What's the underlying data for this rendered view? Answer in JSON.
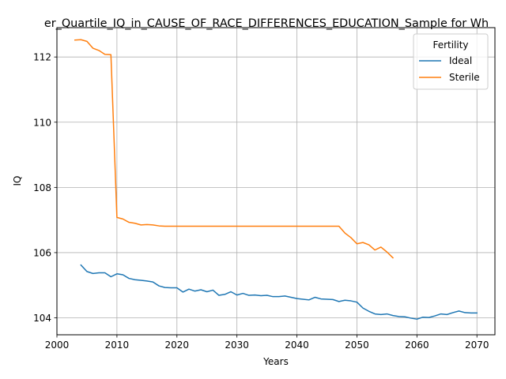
{
  "chart_data": {
    "type": "line",
    "title": "er_Quartile_IQ_in_CAUSE_OF_RACE_DIFFERENCES_EDUCATION_Sample for Wh",
    "xlabel": "Years",
    "ylabel": "IQ",
    "xlim": [
      2000,
      2073
    ],
    "ylim": [
      103.48,
      112.9
    ],
    "xticks": [
      2000,
      2010,
      2020,
      2030,
      2040,
      2050,
      2060,
      2070
    ],
    "xtick_labels": [
      "2000",
      "2010",
      "2020",
      "2030",
      "2040",
      "2050",
      "2060",
      "2070"
    ],
    "yticks": [
      104,
      106,
      108,
      110,
      112
    ],
    "ytick_labels": [
      "104",
      "106",
      "108",
      "110",
      "112"
    ],
    "grid": true,
    "legend": {
      "title": "Fertility",
      "placement": "top-right"
    },
    "series": [
      {
        "name": "Ideal",
        "color": "#1f77b4",
        "x": [
          2004,
          2005,
          2006,
          2007,
          2008,
          2009,
          2010,
          2011,
          2012,
          2013,
          2014,
          2015,
          2016,
          2017,
          2018,
          2019,
          2020,
          2021,
          2022,
          2023,
          2024,
          2025,
          2026,
          2027,
          2028,
          2029,
          2030,
          2031,
          2032,
          2033,
          2034,
          2035,
          2036,
          2037,
          2038,
          2039,
          2040,
          2041,
          2042,
          2043,
          2044,
          2045,
          2046,
          2047,
          2048,
          2049,
          2050,
          2051,
          2052,
          2053,
          2054,
          2055,
          2056,
          2057,
          2058,
          2059,
          2060,
          2061,
          2062,
          2063,
          2064,
          2065,
          2066,
          2067,
          2068,
          2069,
          2070
        ],
        "y": [
          105.62,
          105.42,
          105.36,
          105.38,
          105.38,
          105.26,
          105.35,
          105.32,
          105.21,
          105.17,
          105.15,
          105.13,
          105.1,
          104.98,
          104.93,
          104.92,
          104.92,
          104.79,
          104.88,
          104.82,
          104.86,
          104.8,
          104.85,
          104.69,
          104.72,
          104.8,
          104.7,
          104.75,
          104.69,
          104.7,
          104.68,
          104.69,
          104.65,
          104.65,
          104.67,
          104.63,
          104.59,
          104.57,
          104.55,
          104.63,
          104.58,
          104.57,
          104.56,
          104.5,
          104.54,
          104.52,
          104.48,
          104.3,
          104.2,
          104.12,
          104.1,
          104.12,
          104.07,
          104.04,
          104.03,
          103.99,
          103.96,
          104.02,
          104.01,
          104.06,
          104.12,
          104.1,
          104.16,
          104.21,
          104.16,
          104.15,
          104.15
        ]
      },
      {
        "name": "Sterile",
        "color": "#ff7f0e",
        "x": [
          2003,
          2004,
          2005,
          2006,
          2007,
          2008,
          2009,
          2010,
          2011,
          2012,
          2013,
          2014,
          2015,
          2016,
          2017,
          2018,
          2019,
          2020,
          2021,
          2022,
          2023,
          2024,
          2025,
          2026,
          2027,
          2028,
          2029,
          2030,
          2031,
          2032,
          2033,
          2034,
          2035,
          2036,
          2037,
          2038,
          2039,
          2040,
          2041,
          2042,
          2043,
          2044,
          2045,
          2046,
          2047,
          2048,
          2049,
          2050,
          2051,
          2052,
          2053,
          2054,
          2055,
          2056
        ],
        "y": [
          112.52,
          112.53,
          112.48,
          112.27,
          112.2,
          112.08,
          112.07,
          107.08,
          107.03,
          106.93,
          106.9,
          106.85,
          106.86,
          106.85,
          106.82,
          106.81,
          106.81,
          106.81,
          106.81,
          106.81,
          106.81,
          106.81,
          106.81,
          106.81,
          106.81,
          106.81,
          106.81,
          106.81,
          106.81,
          106.81,
          106.81,
          106.81,
          106.81,
          106.81,
          106.81,
          106.81,
          106.81,
          106.81,
          106.81,
          106.81,
          106.81,
          106.81,
          106.81,
          106.81,
          106.81,
          106.6,
          106.46,
          106.27,
          106.31,
          106.24,
          106.08,
          106.17,
          106.02,
          105.84
        ]
      }
    ]
  }
}
